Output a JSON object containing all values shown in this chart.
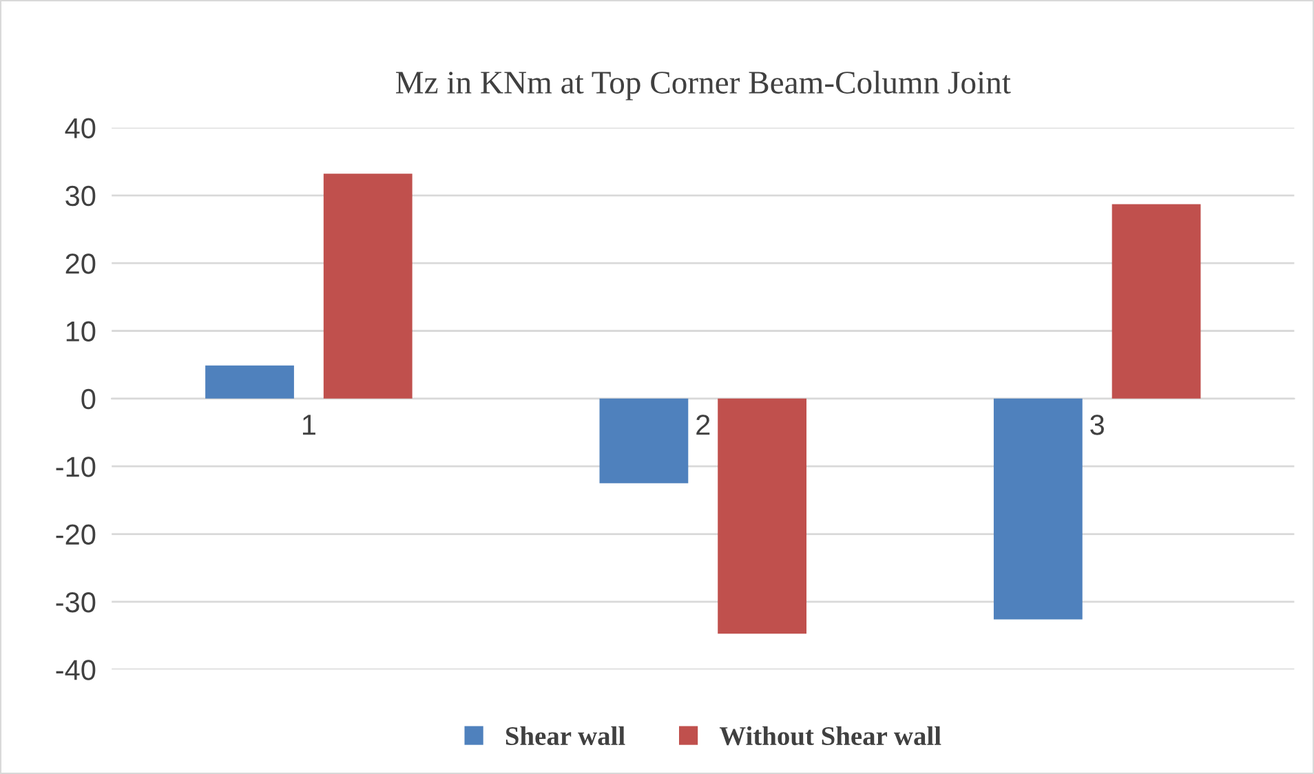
{
  "chart_data": {
    "type": "bar",
    "title": "Mz in KNm at Top Corner Beam-Column Joint",
    "categories": [
      "1",
      "2",
      "3"
    ],
    "series": [
      {
        "name": "Shear wall",
        "color": "#4f81bd",
        "values": [
          4.9,
          -12.5,
          -32.6
        ]
      },
      {
        "name": "Without Shear wall",
        "color": "#c0504d",
        "values": [
          33.2,
          -34.7,
          28.7
        ]
      }
    ],
    "ylim": [
      -40,
      40
    ],
    "yticks": [
      -40,
      -30,
      -20,
      -10,
      0,
      10,
      20,
      30,
      40
    ],
    "grid": "y",
    "legend": "bottom"
  }
}
